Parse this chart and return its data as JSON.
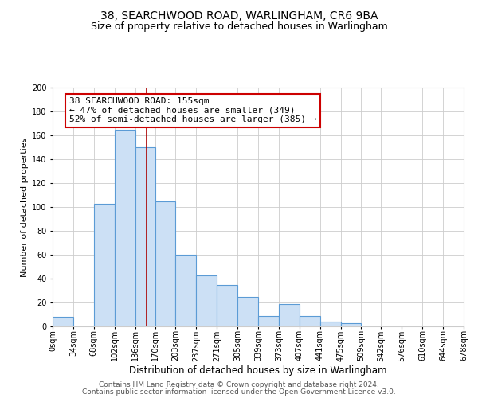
{
  "title": "38, SEARCHWOOD ROAD, WARLINGHAM, CR6 9BA",
  "subtitle": "Size of property relative to detached houses in Warlingham",
  "xlabel": "Distribution of detached houses by size in Warlingham",
  "ylabel": "Number of detached properties",
  "footer_line1": "Contains HM Land Registry data © Crown copyright and database right 2024.",
  "footer_line2": "Contains public sector information licensed under the Open Government Licence v3.0.",
  "annotation_line1": "38 SEARCHWOOD ROAD: 155sqm",
  "annotation_line2": "← 47% of detached houses are smaller (349)",
  "annotation_line3": "52% of semi-detached houses are larger (385) →",
  "bin_edges": [
    0,
    34,
    68,
    102,
    136,
    170,
    203,
    237,
    271,
    305,
    339,
    373,
    407,
    441,
    475,
    509,
    542,
    576,
    610,
    644,
    678
  ],
  "bar_heights": [
    8,
    0,
    103,
    165,
    150,
    105,
    60,
    43,
    35,
    25,
    9,
    19,
    9,
    4,
    3,
    0,
    0,
    0,
    0,
    0
  ],
  "bar_color": "#cce0f5",
  "bar_edge_color": "#5b9bd5",
  "bar_edge_width": 0.8,
  "red_line_x": 155,
  "red_line_color": "#aa0000",
  "ylim": [
    0,
    200
  ],
  "yticks": [
    0,
    20,
    40,
    60,
    80,
    100,
    120,
    140,
    160,
    180,
    200
  ],
  "grid_color": "#cccccc",
  "background_color": "#ffffff",
  "annotation_box_color": "#ffffff",
  "annotation_box_edge": "#cc0000",
  "title_fontsize": 10,
  "subtitle_fontsize": 9,
  "xlabel_fontsize": 8.5,
  "ylabel_fontsize": 8,
  "tick_fontsize": 7,
  "annotation_fontsize": 8,
  "footer_fontsize": 6.5
}
